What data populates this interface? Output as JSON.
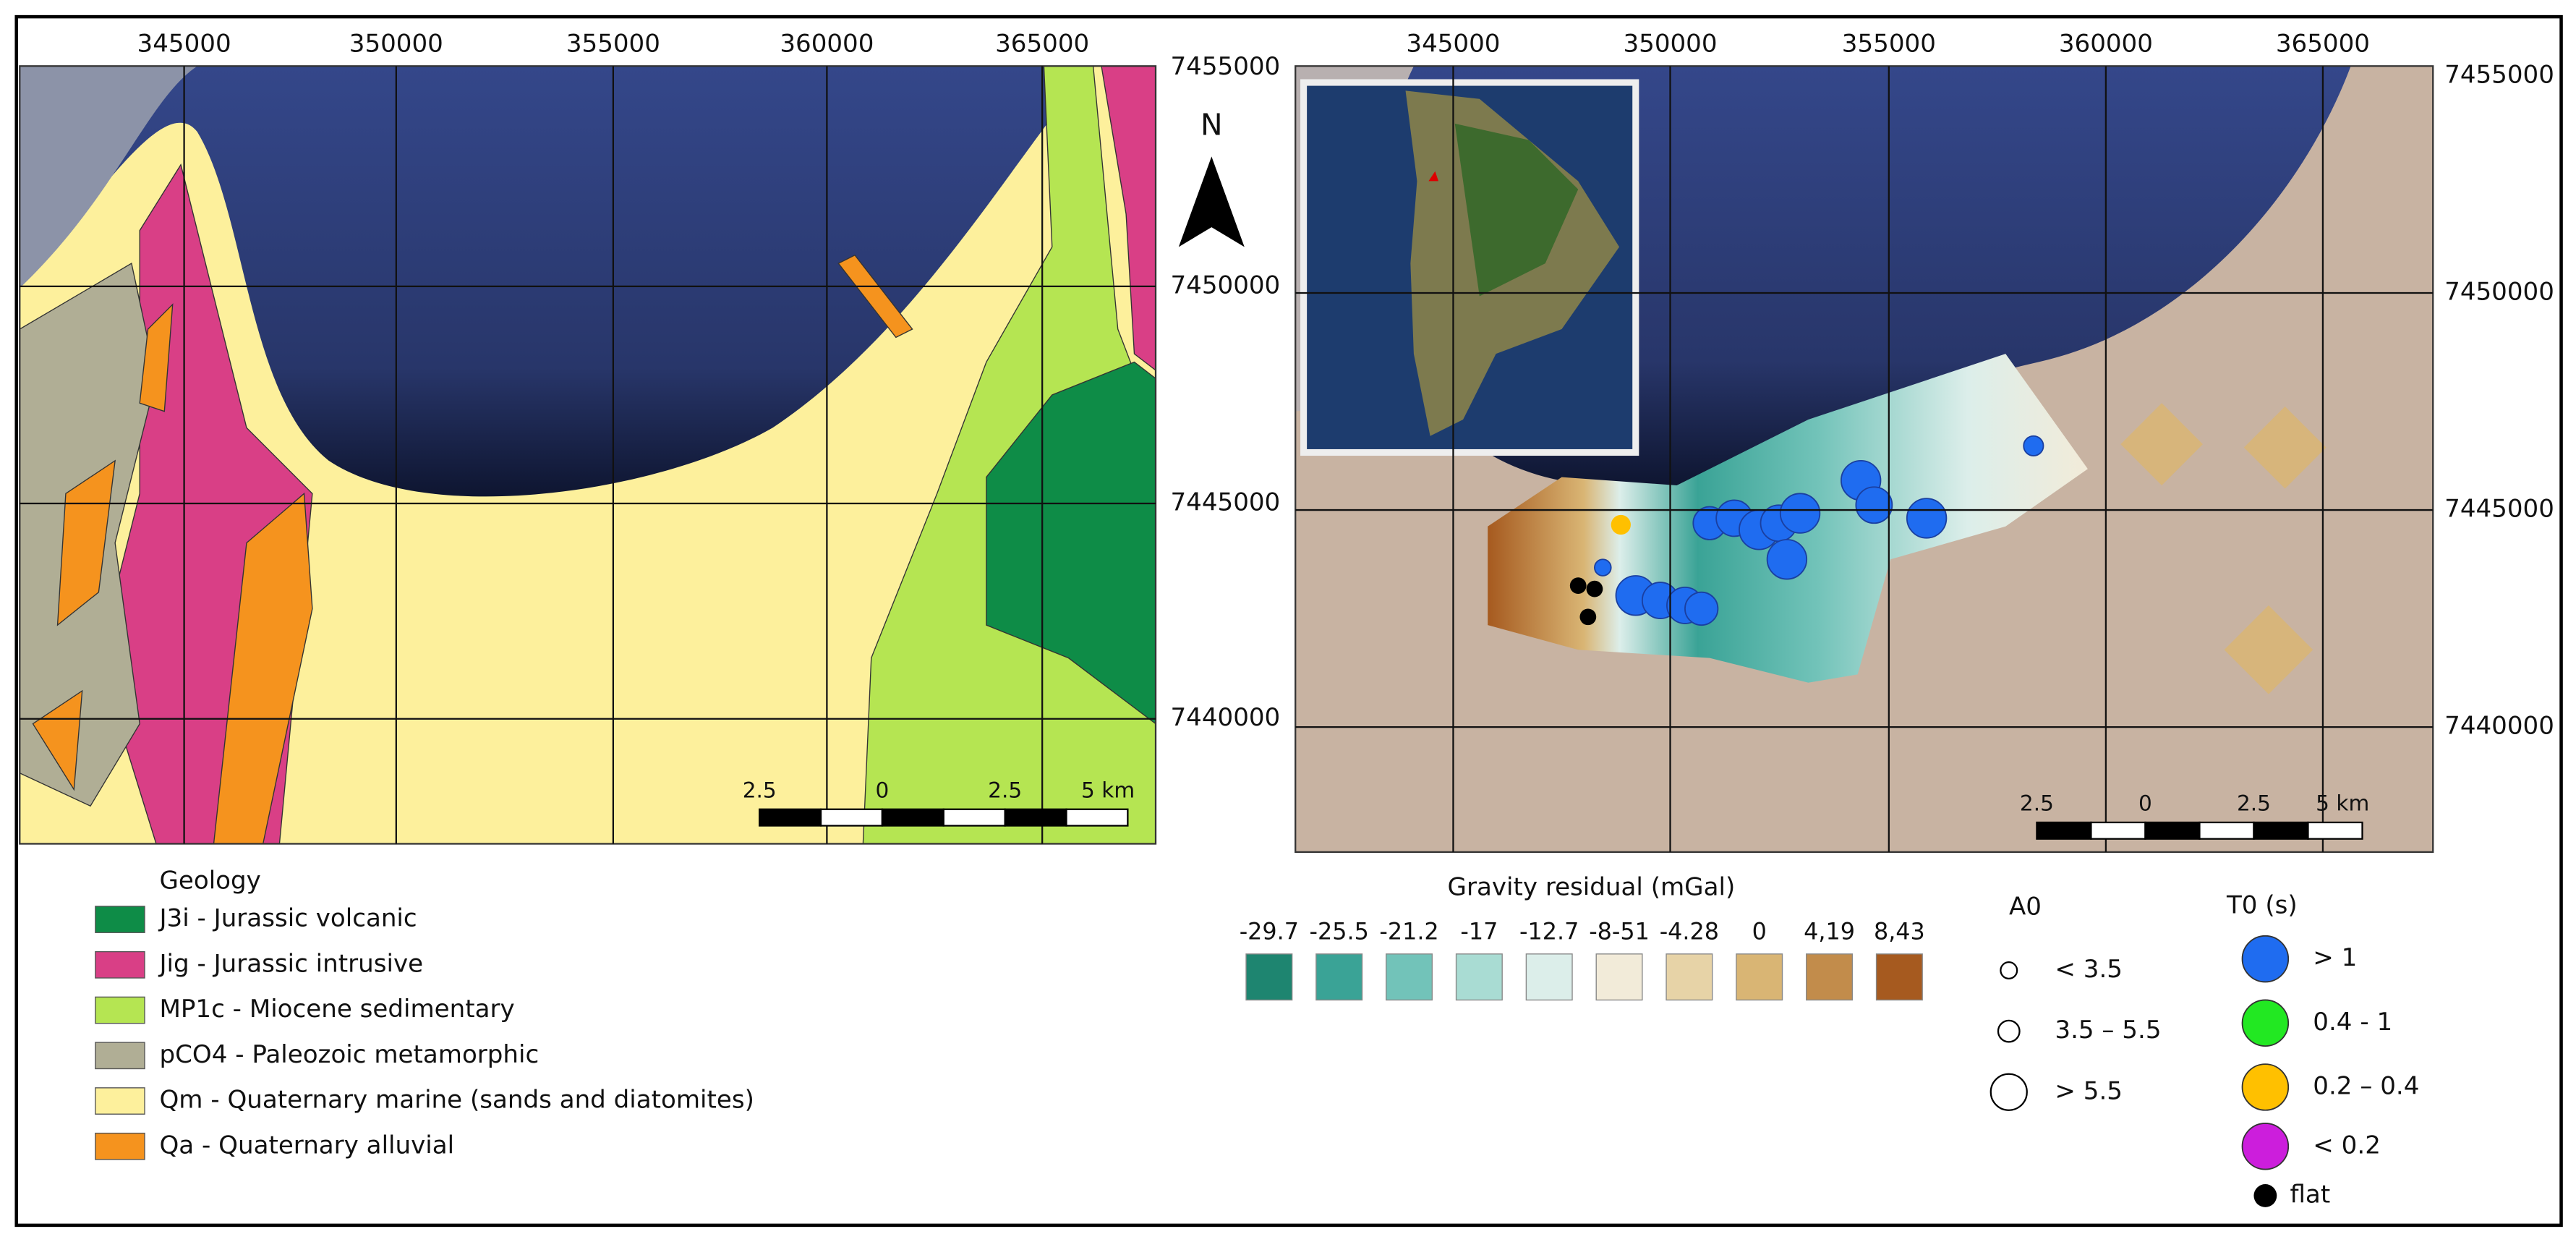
{
  "left_map": {
    "x_labels": [
      "345000",
      "350000",
      "355000",
      "360000",
      "365000"
    ],
    "y_labels": [
      "7455000",
      "7450000",
      "7445000",
      "7440000"
    ],
    "north": "N",
    "scale_labels": [
      "2.5",
      "0",
      "2.5",
      "5 km"
    ]
  },
  "right_map": {
    "x_labels": [
      "345000",
      "350000",
      "355000",
      "360000",
      "365000"
    ],
    "y_labels": [
      "7455000",
      "7450000",
      "7445000",
      "7440000"
    ],
    "scale_labels": [
      "2.5",
      "0",
      "2.5",
      "5 km"
    ]
  },
  "geology_legend": {
    "title": "Geology",
    "items": [
      {
        "label": "J3i - Jurassic volcanic",
        "color": "#0e8c47"
      },
      {
        "label": "Jig - Jurassic intrusive",
        "color": "#d93f86"
      },
      {
        "label": "MP1c - Miocene sedimentary",
        "color": "#b5e552"
      },
      {
        "label": "pCO4 - Paleozoic metamorphic",
        "color": "#b0ae95"
      },
      {
        "label": "Qm - Quaternary marine (sands and diatomites)",
        "color": "#fdf09c"
      },
      {
        "label": "Qa - Quaternary alluvial",
        "color": "#f5931e"
      }
    ]
  },
  "gravity_legend": {
    "title": "Gravity residual (mGal)",
    "items": [
      {
        "label": "-29.7",
        "color": "#1e8570"
      },
      {
        "label": "-25.5",
        "color": "#3aa396"
      },
      {
        "label": "-21.2",
        "color": "#72c3b9"
      },
      {
        "label": "-17",
        "color": "#a9dcd3"
      },
      {
        "label": "-12.7",
        "color": "#dceeea"
      },
      {
        "label": "-8-51",
        "color": "#f2ebd9"
      },
      {
        "label": "-4.28",
        "color": "#e7d3a7"
      },
      {
        "label": "0",
        "color": "#d9b574"
      },
      {
        "label": "4,19",
        "color": "#c28c4b"
      },
      {
        "label": "8,43",
        "color": "#a65a1f"
      }
    ]
  },
  "a0_legend": {
    "title": "A0",
    "items": [
      "< 3.5",
      "3.5 – 5.5",
      "> 5.5"
    ]
  },
  "t0_legend": {
    "title": "T0 (s)",
    "items": [
      {
        "label": "> 1",
        "color": "#1f6cf0"
      },
      {
        "label": "0.4 - 1",
        "color": "#22e822"
      },
      {
        "label": "0.2 – 0.4",
        "color": "#ffc000"
      },
      {
        "label": "< 0.2",
        "color": "#cc1edc"
      },
      {
        "label": "flat",
        "color": "#000000"
      }
    ]
  }
}
